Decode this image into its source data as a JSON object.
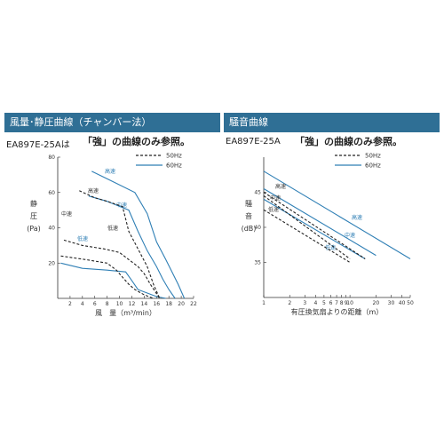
{
  "left": {
    "header": "風量･静圧曲線（チャンバー法）",
    "model": "EA897E-25Aは",
    "note": "「強」の曲線のみ参照。",
    "legend": {
      "hz50": "50Hz",
      "hz60": "60Hz"
    },
    "colors": {
      "hz50": "#222222",
      "hz60": "#2f7fb5"
    }
  },
  "right": {
    "header": "騒音曲線",
    "model": "EA897E-25A",
    "note": "「強」の曲線のみ参照。",
    "legend": {
      "hz50": "50Hz",
      "hz60": "60Hz"
    },
    "colors": {
      "hz50": "#222222",
      "hz60": "#2f7fb5"
    }
  },
  "chart_data": [
    {
      "type": "line",
      "title": "風量･静圧曲線（チャンバー法）",
      "xlabel": "風　量（m³/min）",
      "ylabel_lines": [
        "静",
        "圧",
        "(Pa)"
      ],
      "xlim": [
        0,
        22
      ],
      "ylim": [
        0,
        80
      ],
      "x_ticks": [
        2,
        4,
        6,
        8,
        10,
        12,
        14,
        16,
        18,
        20,
        22
      ],
      "y_ticks": [
        20,
        40,
        60,
        80
      ],
      "grid": false,
      "legend": "top-right",
      "series": [
        {
          "name": "60Hz",
          "label": "高速",
          "style": "solid",
          "x": [
            5.5,
            9,
            12.5,
            14.5,
            16,
            17.5,
            18.5,
            19.5,
            20.5
          ],
          "y": [
            72,
            66,
            60,
            48,
            32,
            22,
            15,
            8,
            0
          ]
        },
        {
          "name": "60Hz",
          "label": "中速",
          "style": "solid",
          "x": [
            5,
            8,
            11.5,
            13,
            14.5,
            16,
            17,
            18,
            19
          ],
          "y": [
            58,
            55,
            50,
            38,
            27,
            18,
            11,
            5,
            0
          ]
        },
        {
          "name": "60Hz",
          "label": "低速",
          "style": "solid",
          "x": [
            0.5,
            4,
            8,
            11,
            12,
            13,
            14.5,
            16,
            17.5
          ],
          "y": [
            20,
            17,
            16,
            15,
            10,
            5,
            3,
            1,
            0
          ]
        },
        {
          "name": "50Hz",
          "label": "高速",
          "style": "dashed",
          "x": [
            3.5,
            6,
            8,
            10.5,
            11.5,
            13,
            14.5,
            15.5,
            16.5
          ],
          "y": [
            61,
            57,
            55,
            52,
            38,
            28,
            18,
            8,
            0
          ]
        },
        {
          "name": "50Hz",
          "label": "中速",
          "style": "dashed",
          "x": [
            1,
            4,
            7.5,
            10,
            11.5,
            13,
            14,
            15,
            16.5
          ],
          "y": [
            33,
            30,
            28,
            26,
            22,
            18,
            14,
            8,
            0
          ]
        },
        {
          "name": "50Hz",
          "label": "低速",
          "style": "dashed",
          "x": [
            0.5,
            4.5,
            8,
            9.5,
            10.5,
            11.5,
            12.5,
            14,
            15.5
          ],
          "y": [
            24,
            22,
            20,
            16,
            12,
            8,
            5,
            2,
            0
          ]
        }
      ]
    },
    {
      "type": "line",
      "title": "騒音曲線",
      "xlabel": "有圧換気扇よりの距離（m）",
      "ylabel_lines": [
        "騒",
        "音",
        "(dB)"
      ],
      "xscale": "log",
      "xlim": [
        1,
        50
      ],
      "ylim": [
        30,
        50
      ],
      "x_ticks": [
        1,
        2,
        3,
        4,
        5,
        6,
        7,
        8,
        9,
        10,
        20,
        30,
        40,
        50
      ],
      "y_ticks": [
        35,
        40,
        45
      ],
      "grid": false,
      "legend": "top-right",
      "series": [
        {
          "name": "60Hz",
          "label": "高速",
          "style": "solid",
          "x": [
            1,
            50
          ],
          "y": [
            48,
            35.5
          ]
        },
        {
          "name": "60Hz",
          "label": "中速",
          "style": "solid",
          "x": [
            1,
            20
          ],
          "y": [
            45.5,
            36
          ]
        },
        {
          "name": "60Hz",
          "label": "低速",
          "style": "solid",
          "x": [
            1,
            15
          ],
          "y": [
            44,
            35.5
          ]
        },
        {
          "name": "50Hz",
          "label": "高速",
          "style": "dashed",
          "x": [
            1,
            15
          ],
          "y": [
            45,
            35.5
          ]
        },
        {
          "name": "50Hz",
          "label": "中速",
          "style": "dashed",
          "x": [
            1,
            10
          ],
          "y": [
            44.5,
            35.5
          ]
        },
        {
          "name": "50Hz",
          "label": "低速",
          "style": "dashed",
          "x": [
            1,
            10
          ],
          "y": [
            42.5,
            35
          ]
        }
      ]
    }
  ]
}
